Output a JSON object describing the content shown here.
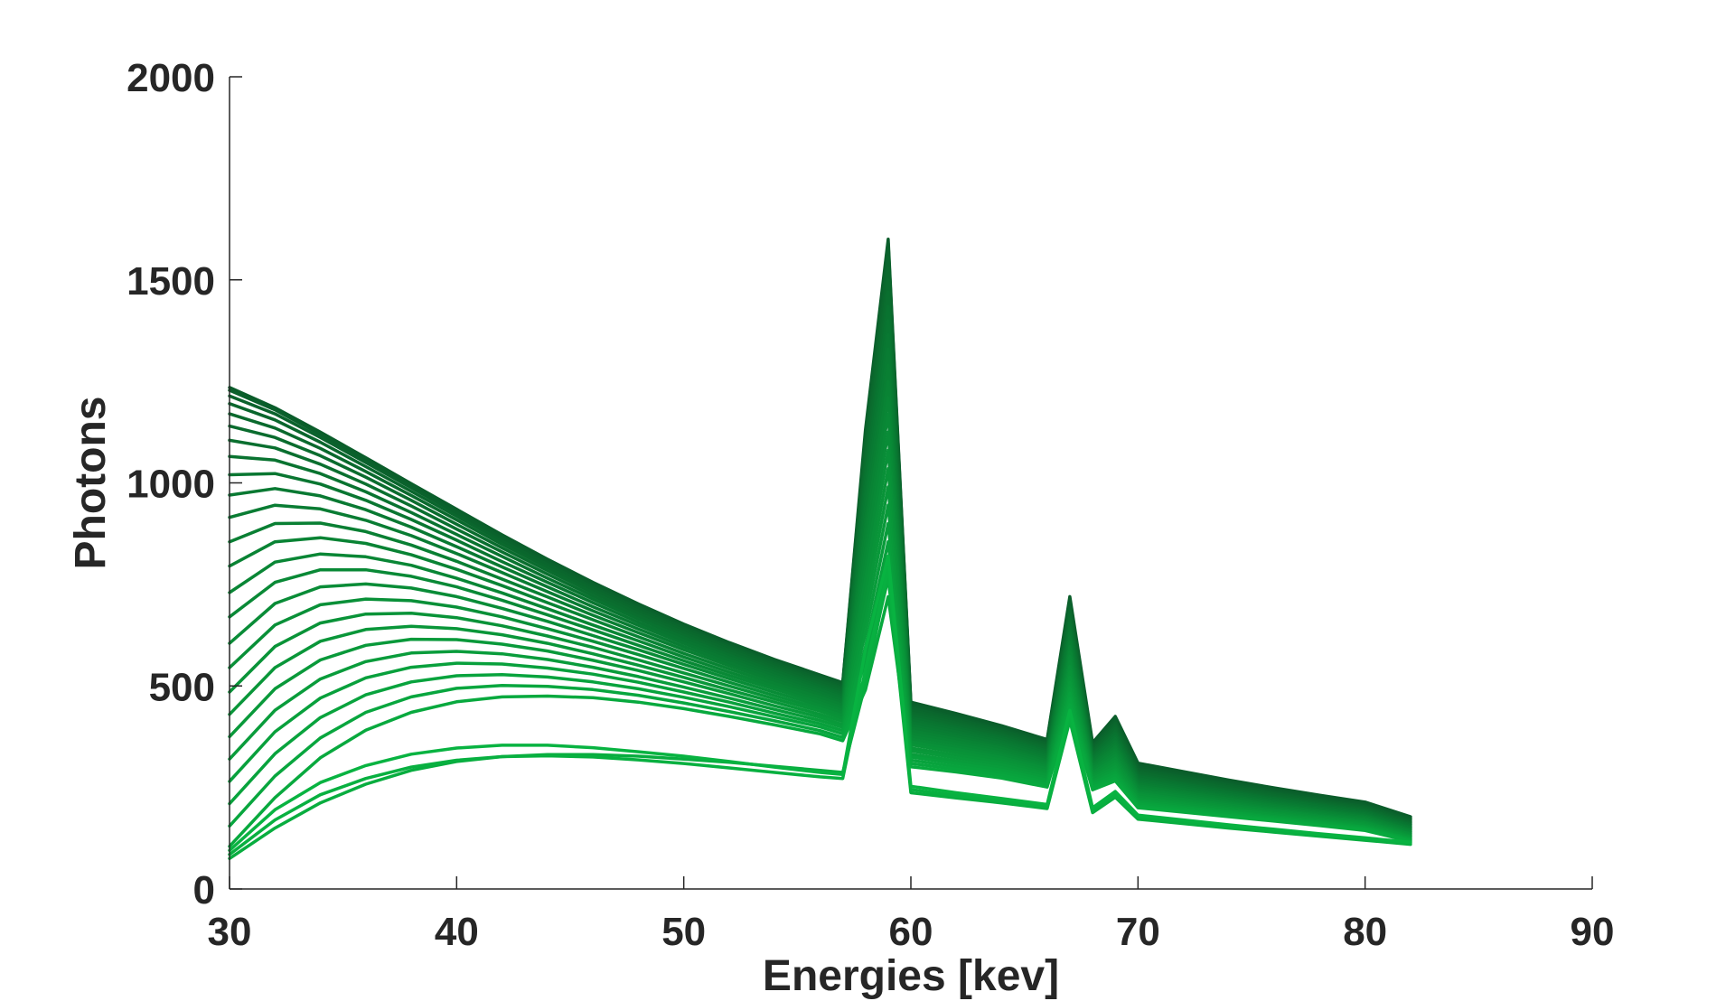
{
  "chart_data": {
    "type": "line",
    "title": "",
    "xlabel": "Energies [kev]",
    "ylabel": "Photons",
    "xlim": [
      30,
      90
    ],
    "ylim": [
      0,
      2000
    ],
    "xticks": [
      30,
      40,
      50,
      60,
      70,
      80,
      90
    ],
    "yticks": [
      0,
      500,
      1000,
      1500,
      2000
    ],
    "grid": false,
    "legend": "none",
    "series_color_darkest": "#0a5c2a",
    "series_color_lightest": "#08b341",
    "x": [
      30,
      32,
      34,
      36,
      38,
      40,
      42,
      44,
      46,
      48,
      50,
      52,
      54,
      56,
      57,
      58,
      59,
      60,
      62,
      64,
      66,
      67,
      68,
      69,
      70,
      72,
      74,
      76,
      78,
      80,
      82
    ],
    "series": [
      {
        "values": [
          1235,
          1185,
          1125,
          1062,
          998,
          935,
          872,
          812,
          755,
          702,
          652,
          607,
          565,
          527,
          508,
          1130,
          1600,
          460,
          432,
          402,
          368,
          720,
          360,
          425,
          310,
          289,
          268,
          249,
          231,
          214,
          178
        ]
      },
      {
        "values": [
          1228,
          1180,
          1120,
          1058,
          995,
          932,
          869,
          810,
          753,
          700,
          650,
          605,
          563,
          525,
          506,
          1120,
          1590,
          456,
          428,
          399,
          365,
          712,
          356,
          420,
          305,
          284,
          264,
          245,
          227,
          210,
          175
        ]
      },
      {
        "values": [
          1214,
          1170,
          1112,
          1050,
          988,
          926,
          864,
          805,
          749,
          696,
          646,
          601,
          560,
          522,
          503,
          1110,
          1575,
          451,
          423,
          395,
          361,
          703,
          352,
          414,
          300,
          279,
          260,
          241,
          223,
          206,
          172
        ]
      },
      {
        "values": [
          1195,
          1155,
          1100,
          1040,
          979,
          918,
          857,
          799,
          743,
          691,
          642,
          597,
          556,
          518,
          499,
          1095,
          1555,
          446,
          419,
          391,
          357,
          694,
          348,
          408,
          295,
          275,
          256,
          237,
          219,
          203,
          169
        ]
      },
      {
        "values": [
          1170,
          1135,
          1085,
          1028,
          969,
          909,
          849,
          792,
          737,
          685,
          637,
          593,
          552,
          514,
          495,
          1080,
          1530,
          440,
          414,
          387,
          353,
          685,
          343,
          402,
          290,
          271,
          252,
          234,
          216,
          200,
          166
        ]
      },
      {
        "values": [
          1140,
          1112,
          1067,
          1014,
          957,
          898,
          840,
          784,
          730,
          679,
          631,
          588,
          547,
          510,
          491,
          1060,
          1500,
          434,
          409,
          382,
          349,
          675,
          339,
          396,
          286,
          267,
          248,
          230,
          213,
          197,
          163
        ]
      },
      {
        "values": [
          1105,
          1086,
          1046,
          997,
          943,
          886,
          830,
          775,
          722,
          672,
          625,
          582,
          542,
          505,
          486,
          1040,
          1470,
          428,
          404,
          378,
          345,
          665,
          334,
          389,
          281,
          262,
          244,
          226,
          210,
          194,
          160
        ]
      },
      {
        "values": [
          1065,
          1056,
          1023,
          978,
          927,
          873,
          819,
          765,
          714,
          665,
          619,
          576,
          537,
          500,
          481,
          1015,
          1435,
          422,
          398,
          373,
          340,
          654,
          330,
          383,
          277,
          258,
          240,
          223,
          207,
          191,
          158
        ]
      },
      {
        "values": [
          1020,
          1023,
          997,
          957,
          910,
          859,
          806,
          755,
          705,
          657,
          612,
          570,
          531,
          495,
          476,
          990,
          1400,
          416,
          393,
          368,
          336,
          643,
          325,
          376,
          272,
          254,
          237,
          220,
          204,
          188,
          155
        ]
      },
      {
        "values": [
          970,
          986,
          968,
          934,
          891,
          843,
          793,
          744,
          695,
          649,
          605,
          564,
          525,
          490,
          471,
          965,
          1365,
          410,
          387,
          363,
          331,
          632,
          321,
          370,
          268,
          250,
          233,
          216,
          200,
          185,
          152
        ]
      },
      {
        "values": [
          915,
          945,
          936,
          908,
          870,
          826,
          779,
          732,
          685,
          640,
          597,
          557,
          519,
          484,
          465,
          940,
          1330,
          403,
          381,
          358,
          326,
          621,
          316,
          363,
          263,
          246,
          229,
          213,
          197,
          182,
          150
        ]
      },
      {
        "values": [
          855,
          900,
          901,
          880,
          847,
          807,
          763,
          719,
          674,
          631,
          589,
          550,
          513,
          478,
          459,
          912,
          1290,
          397,
          375,
          352,
          321,
          609,
          311,
          357,
          259,
          242,
          226,
          210,
          194,
          180,
          147
        ]
      },
      {
        "values": [
          795,
          855,
          865,
          851,
          823,
          787,
          747,
          705,
          663,
          621,
          580,
          542,
          506,
          472,
          453,
          885,
          1250,
          390,
          369,
          347,
          316,
          597,
          307,
          350,
          254,
          238,
          222,
          206,
          191,
          177,
          145
        ]
      },
      {
        "values": [
          730,
          805,
          825,
          818,
          797,
          765,
          729,
          690,
          650,
          611,
          571,
          534,
          499,
          465,
          447,
          856,
          1210,
          383,
          363,
          341,
          311,
          585,
          302,
          343,
          250,
          234,
          218,
          203,
          188,
          174,
          142
        ]
      },
      {
        "values": [
          670,
          755,
          786,
          786,
          770,
          744,
          711,
          675,
          638,
          600,
          562,
          526,
          492,
          459,
          440,
          826,
          1170,
          376,
          357,
          335,
          306,
          573,
          297,
          336,
          245,
          230,
          214,
          199,
          185,
          171,
          140
        ]
      },
      {
        "values": [
          605,
          703,
          744,
          751,
          741,
          720,
          691,
          659,
          624,
          589,
          553,
          518,
          484,
          452,
          434,
          795,
          1125,
          369,
          350,
          330,
          301,
          561,
          292,
          329,
          241,
          226,
          211,
          196,
          182,
          168,
          137
        ]
      },
      {
        "values": [
          545,
          650,
          700,
          714,
          710,
          694,
          670,
          641,
          610,
          577,
          543,
          509,
          476,
          445,
          427,
          763,
          1080,
          362,
          344,
          324,
          296,
          548,
          287,
          322,
          236,
          221,
          207,
          193,
          179,
          165,
          135
        ]
      },
      {
        "values": [
          485,
          597,
          655,
          677,
          679,
          668,
          648,
          623,
          595,
          564,
          532,
          500,
          468,
          438,
          420,
          730,
          1035,
          355,
          337,
          318,
          290,
          535,
          282,
          315,
          232,
          217,
          203,
          189,
          176,
          163,
          132
        ]
      },
      {
        "values": [
          430,
          545,
          610,
          639,
          647,
          641,
          626,
          605,
          579,
          551,
          521,
          490,
          460,
          430,
          413,
          697,
          990,
          347,
          330,
          312,
          285,
          522,
          277,
          308,
          227,
          213,
          199,
          186,
          173,
          160,
          130
        ]
      },
      {
        "values": [
          375,
          493,
          564,
          600,
          615,
          614,
          603,
          586,
          563,
          538,
          510,
          481,
          451,
          423,
          405,
          664,
          945,
          340,
          323,
          306,
          280,
          509,
          272,
          301,
          222,
          209,
          196,
          183,
          170,
          157,
          128
        ]
      },
      {
        "values": [
          320,
          440,
          517,
          560,
          581,
          585,
          579,
          565,
          546,
          523,
          497,
          470,
          442,
          415,
          398,
          630,
          900,
          332,
          316,
          299,
          274,
          496,
          266,
          294,
          218,
          205,
          192,
          179,
          167,
          154,
          125
        ]
      },
      {
        "values": [
          265,
          387,
          470,
          520,
          546,
          556,
          554,
          544,
          529,
          509,
          485,
          460,
          433,
          407,
          390,
          596,
          855,
          325,
          309,
          293,
          268,
          482,
          261,
          287,
          213,
          201,
          189,
          176,
          164,
          152,
          123
        ]
      },
      {
        "values": [
          210,
          333,
          422,
          478,
          510,
          525,
          528,
          522,
          510,
          493,
          472,
          449,
          424,
          399,
          382,
          561,
          810,
          317,
          302,
          286,
          263,
          468,
          255,
          280,
          209,
          197,
          185,
          173,
          161,
          149,
          121
        ]
      },
      {
        "values": [
          155,
          278,
          372,
          435,
          473,
          494,
          501,
          499,
          491,
          477,
          458,
          437,
          414,
          390,
          373,
          526,
          765,
          309,
          295,
          280,
          257,
          454,
          250,
          273,
          204,
          193,
          181,
          170,
          158,
          147,
          119
        ]
      },
      {
        "values": [
          105,
          225,
          323,
          391,
          435,
          461,
          473,
          475,
          471,
          460,
          444,
          425,
          404,
          382,
          365,
          490,
          720,
          301,
          288,
          273,
          251,
          440,
          244,
          266,
          200,
          189,
          178,
          167,
          156,
          144,
          117
        ]
      },
      {
        "values": [
          75,
          150,
          212,
          258,
          292,
          314,
          326,
          331,
          331,
          327,
          320,
          312,
          302,
          292,
          287,
          505,
          775,
          237,
          224,
          212,
          198,
          415,
          188,
          226,
          172,
          161,
          150,
          140,
          130,
          120,
          110
        ]
      },
      {
        "values": [
          85,
          170,
          232,
          272,
          300,
          317,
          326,
          328,
          325,
          318,
          309,
          298,
          287,
          276,
          272,
          540,
          790,
          245,
          230,
          217,
          203,
          425,
          194,
          232,
          177,
          165,
          154,
          143,
          133,
          123,
          113
        ]
      },
      {
        "values": [
          95,
          195,
          262,
          304,
          332,
          347,
          354,
          354,
          348,
          338,
          327,
          314,
          300,
          287,
          282,
          590,
          820,
          253,
          237,
          223,
          208,
          440,
          200,
          240,
          182,
          170,
          158,
          147,
          136,
          126,
          115
        ]
      }
    ]
  }
}
